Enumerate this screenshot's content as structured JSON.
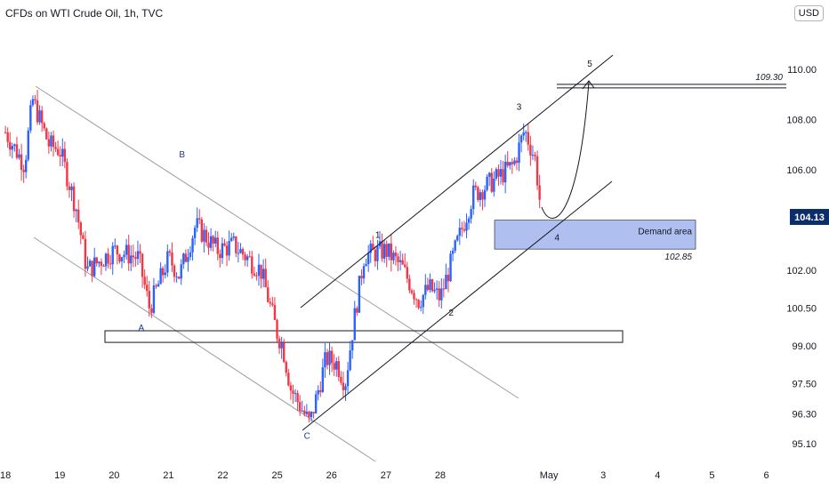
{
  "title": "CFDs on WTI Crude Oil, 1h, TVC",
  "currency_button": "USD",
  "colors": {
    "up": "#2962ff",
    "down": "#f23645",
    "last_price_bg": "#0b2e6b",
    "demand": "#aebff0",
    "channel": "#131722",
    "old_channel": "#9e9e9e"
  },
  "chart_data": {
    "type": "candlestick",
    "symbol": "CFDs on WTI Crude Oil",
    "interval": "1h",
    "y_ticks": [
      110.0,
      108.0,
      106.0,
      104.13,
      102.0,
      100.5,
      99.0,
      97.5,
      96.3,
      95.1
    ],
    "y_range": [
      94.4,
      111.7
    ],
    "last_price": 104.13,
    "x_ticks": [
      "18",
      "19",
      "20",
      "21",
      "22",
      "25",
      "26",
      "27",
      "28",
      "May",
      "3",
      "4",
      "5",
      "6"
    ],
    "x_tick_index": [
      0,
      1,
      2,
      3,
      4,
      5,
      6,
      7,
      8,
      10,
      11,
      12,
      13,
      14
    ],
    "x_range_index": [
      -0.1,
      14.4
    ],
    "price_path_index": [
      0,
      0.35,
      0.5,
      0.8,
      1.0,
      1.3,
      1.5,
      2.0,
      2.45,
      2.65,
      3.0,
      3.2,
      3.5,
      3.9,
      4.2,
      4.7,
      5.0,
      5.1,
      5.25,
      5.45,
      5.6,
      5.9,
      6.1,
      6.25,
      6.4,
      6.6,
      7.0,
      7.3,
      7.6,
      7.8,
      8.0,
      8.3,
      8.6,
      9.0,
      9.35,
      9.55,
      9.75,
      9.85
    ],
    "price_path_value": [
      107.5,
      106.2,
      108.8,
      107.0,
      106.8,
      104.5,
      102.0,
      102.8,
      102.5,
      100.5,
      102.5,
      101.8,
      103.8,
      102.8,
      103.0,
      102.0,
      99.5,
      99.0,
      97.3,
      96.5,
      95.9,
      98.5,
      98.3,
      97.5,
      99.8,
      102.6,
      102.8,
      102.1,
      100.8,
      101.3,
      100.9,
      103.0,
      105.0,
      105.6,
      106.2,
      107.6,
      106.4,
      104.4
    ],
    "annotations": {
      "wave_labels": [
        {
          "text": "A",
          "x": 2.5,
          "y": 99.6,
          "color": "blue"
        },
        {
          "text": "B",
          "x": 3.25,
          "y": 106.5,
          "color": "blue"
        },
        {
          "text": "C",
          "x": 5.55,
          "y": 95.3,
          "color": "blue"
        },
        {
          "text": "1",
          "x": 6.85,
          "y": 103.3,
          "color": "black"
        },
        {
          "text": "2",
          "x": 8.2,
          "y": 100.2,
          "color": "black"
        },
        {
          "text": "3",
          "x": 9.45,
          "y": 108.4,
          "color": "black"
        },
        {
          "text": "4",
          "x": 10.15,
          "y": 103.2,
          "color": "black"
        },
        {
          "text": "5",
          "x": 10.75,
          "y": 110.1,
          "color": "black"
        }
      ],
      "demand_area_label": "Demand area",
      "demand_area_top": 104.0,
      "demand_area_bottom": 102.85,
      "demand_area_price_label": "102.85",
      "target_level": 109.3,
      "target_level_label": "109.30",
      "horizontal_zone": [
        99.6,
        99.35
      ]
    }
  }
}
